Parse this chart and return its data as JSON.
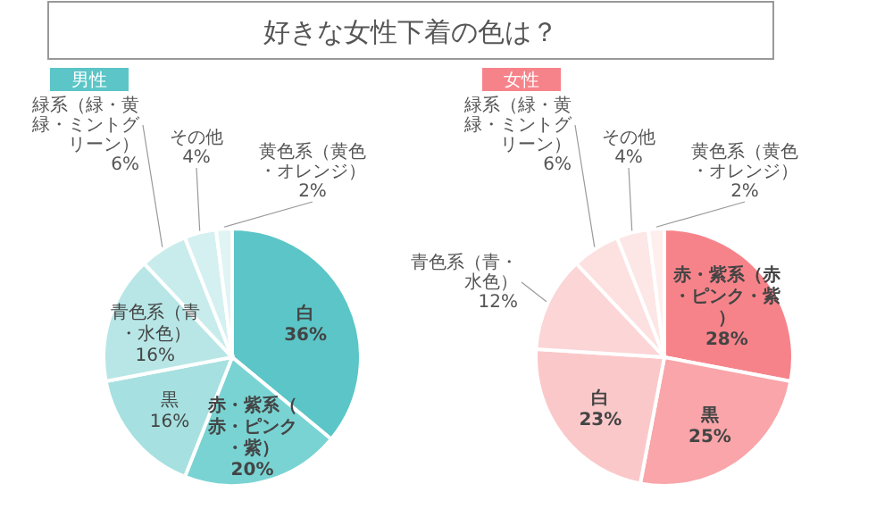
{
  "chart_data": [
    {
      "type": "other",
      "title": "好きな女性下着の色は？"
    },
    {
      "type": "pie",
      "title": "男性",
      "categories": [
        "白",
        "赤・紫系（赤・ピンク・紫）",
        "黒",
        "青色系（青・水色）",
        "緑系（緑・黄緑・ミントグリーン）",
        "その他",
        "黄色系（黄色・オレンジ）"
      ],
      "values": [
        36,
        20,
        16,
        16,
        6,
        4,
        2
      ],
      "value_labels": [
        "36%",
        "20%",
        "16%",
        "16%",
        "6%",
        "4%",
        "2%"
      ],
      "colors": [
        "#5bc5c7",
        "#79d3d3",
        "#a6e0e0",
        "#b8e6e6",
        "#c8ecec",
        "#d5f0f0",
        "#e0f4f4"
      ]
    },
    {
      "type": "pie",
      "title": "女性",
      "categories": [
        "赤・紫系（赤・ピンク・紫）",
        "黒",
        "白",
        "青色系（青・水色）",
        "緑系（緑・黄緑・ミントグリーン）",
        "その他",
        "黄色系（黄色・オレンジ）"
      ],
      "values": [
        28,
        25,
        23,
        12,
        6,
        4,
        2
      ],
      "value_labels": [
        "28%",
        "25%",
        "23%",
        "12%",
        "6%",
        "4%",
        "2%"
      ],
      "colors": [
        "#f7838a",
        "#f9a5a9",
        "#fbc8ca",
        "#fcd5d6",
        "#fde0e0",
        "#fde6e6",
        "#feeeee"
      ]
    }
  ]
}
